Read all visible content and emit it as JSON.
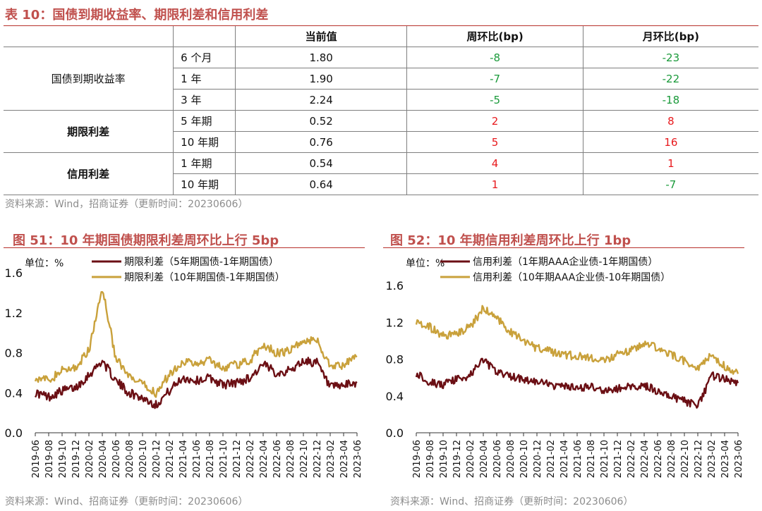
{
  "table": {
    "title": "表 10：国债到期收益率、期限利差和信用利差",
    "headers": [
      "",
      "",
      "当前值",
      "周环比(bp)",
      "月环比(bp)"
    ],
    "groups": [
      {
        "name": "国债到期收益率",
        "rows": [
          {
            "term": "6 个月",
            "current": "1.80",
            "wow": "-8",
            "mom": "-23"
          },
          {
            "term": "1 年",
            "current": "1.90",
            "wow": "-7",
            "mom": "-22"
          },
          {
            "term": "3 年",
            "current": "2.24",
            "wow": "-5",
            "mom": "-18"
          }
        ]
      },
      {
        "name": "期限利差",
        "rows": [
          {
            "term": "5 年期",
            "current": "0.52",
            "wow": "2",
            "mom": "8"
          },
          {
            "term": "10 年期",
            "current": "0.76",
            "wow": "5",
            "mom": "16"
          }
        ]
      },
      {
        "name": "信用利差",
        "rows": [
          {
            "term": "1 年期",
            "current": "0.54",
            "wow": "4",
            "mom": "1"
          },
          {
            "term": "10 年期",
            "current": "0.64",
            "wow": "1",
            "mom": "-7"
          }
        ]
      }
    ],
    "source": "资料来源：Wind，招商证券（更新时间：20230606）"
  },
  "colors": {
    "title": "#c0504d",
    "positive": "#e8191d",
    "negative": "#1a9a3a",
    "series_dark": "#6b0f14",
    "series_gold": "#c9a13b"
  },
  "chart_data": [
    {
      "type": "line",
      "title": "图 51：10 年期国债期限利差周环比上行 5bp",
      "unit_label": "单位：%",
      "x": [
        "2019-06",
        "2019-08",
        "2019-10",
        "2019-12",
        "2020-02",
        "2020-04",
        "2020-06",
        "2020-08",
        "2020-10",
        "2020-12",
        "2021-02",
        "2021-04",
        "2021-06",
        "2021-08",
        "2021-10",
        "2021-12",
        "2022-02",
        "2022-04",
        "2022-06",
        "2022-08",
        "2022-10",
        "2022-12",
        "2023-02",
        "2023-04",
        "2023-06"
      ],
      "ylim": [
        0.0,
        1.6
      ],
      "yticks": [
        "0.0",
        "0.4",
        "0.8",
        "1.2",
        "1.6"
      ],
      "series": [
        {
          "name": "期限利差（5年期国债-1年期国债）",
          "values": [
            0.4,
            0.36,
            0.42,
            0.45,
            0.58,
            0.72,
            0.52,
            0.4,
            0.35,
            0.28,
            0.42,
            0.55,
            0.52,
            0.55,
            0.48,
            0.5,
            0.55,
            0.68,
            0.6,
            0.62,
            0.72,
            0.7,
            0.45,
            0.47,
            0.5
          ]
        },
        {
          "name": "期限利差（10年期国债-1年期国债）",
          "values": [
            0.56,
            0.52,
            0.62,
            0.65,
            0.82,
            1.45,
            0.75,
            0.55,
            0.48,
            0.4,
            0.58,
            0.72,
            0.68,
            0.73,
            0.65,
            0.68,
            0.72,
            0.88,
            0.8,
            0.82,
            0.92,
            0.93,
            0.66,
            0.68,
            0.76
          ]
        }
      ],
      "source": "资料来源：Wind、招商证券（更新时间：20230606）"
    },
    {
      "type": "line",
      "title": "图 52：10 年期信用利差周环比上行 1bp",
      "unit_label": "单位：%",
      "x": [
        "2019-06",
        "2019-08",
        "2019-10",
        "2019-12",
        "2020-02",
        "2020-04",
        "2020-06",
        "2020-08",
        "2020-10",
        "2020-12",
        "2021-02",
        "2021-04",
        "2021-06",
        "2021-08",
        "2021-10",
        "2021-12",
        "2022-02",
        "2022-04",
        "2022-06",
        "2022-08",
        "2022-10",
        "2022-12",
        "2023-02",
        "2023-04",
        "2023-06"
      ],
      "ylim": [
        0.0,
        1.6
      ],
      "yticks": [
        "0.0",
        "0.4",
        "0.8",
        "1.2",
        "1.6"
      ],
      "series": [
        {
          "name": "信用利差（1年期AAA企业债-1年期国债）",
          "values": [
            0.65,
            0.55,
            0.52,
            0.58,
            0.62,
            0.8,
            0.65,
            0.62,
            0.58,
            0.55,
            0.52,
            0.5,
            0.48,
            0.5,
            0.45,
            0.48,
            0.5,
            0.52,
            0.45,
            0.4,
            0.35,
            0.28,
            0.62,
            0.58,
            0.54
          ]
        },
        {
          "name": "信用利差（10年期AAA企业债-10年期国债）",
          "values": [
            1.22,
            1.15,
            1.05,
            1.08,
            1.15,
            1.35,
            1.25,
            1.1,
            1.0,
            0.92,
            0.88,
            0.85,
            0.83,
            0.82,
            0.78,
            0.85,
            0.9,
            0.98,
            0.92,
            0.85,
            0.78,
            0.7,
            0.85,
            0.72,
            0.64
          ]
        }
      ],
      "source": "资料来源：Wind、招商证券（更新时间：20230606）"
    }
  ]
}
